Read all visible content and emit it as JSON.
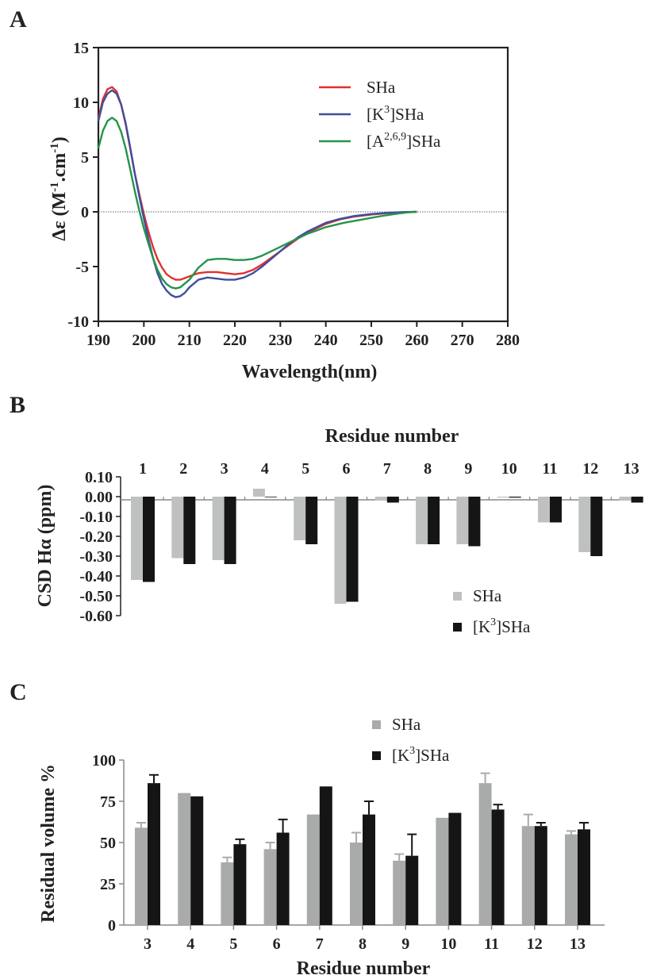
{
  "chart_data": [
    {
      "panel_label": "A",
      "type": "line",
      "xlabel": "Wavelength(nm)",
      "ylabel": "Δε (M-1.cm-1)",
      "xlim": [
        190,
        280
      ],
      "ylim": [
        -10,
        15
      ],
      "xticks": [
        190,
        200,
        210,
        220,
        230,
        240,
        250,
        260,
        270,
        280
      ],
      "yticks": [
        -10,
        -5,
        0,
        5,
        10,
        15
      ],
      "zero_line": true,
      "legend_position": "top-right",
      "series": [
        {
          "name": "SHa",
          "color": "#e0312f",
          "x": [
            190,
            191,
            192,
            193,
            194,
            195,
            196,
            197,
            198,
            199,
            200,
            201,
            202,
            203,
            204,
            205,
            206,
            207,
            208,
            210,
            212,
            214,
            216,
            218,
            220,
            222,
            224,
            226,
            228,
            230,
            232,
            234,
            236,
            238,
            240,
            243,
            246,
            250,
            254,
            257,
            260
          ],
          "y": [
            8.5,
            10.3,
            11.2,
            11.4,
            11.0,
            9.8,
            8.0,
            5.8,
            3.5,
            1.6,
            -0.2,
            -1.8,
            -3.2,
            -4.3,
            -5.1,
            -5.7,
            -6.0,
            -6.2,
            -6.2,
            -5.9,
            -5.6,
            -5.5,
            -5.5,
            -5.6,
            -5.7,
            -5.6,
            -5.3,
            -4.8,
            -4.2,
            -3.6,
            -3.0,
            -2.4,
            -1.9,
            -1.5,
            -1.1,
            -0.7,
            -0.45,
            -0.25,
            -0.1,
            -0.03,
            0
          ]
        },
        {
          "name": "[K3]SHa",
          "color": "#3f4e9e",
          "x": [
            190,
            191,
            192,
            193,
            194,
            195,
            196,
            197,
            198,
            199,
            200,
            201,
            202,
            203,
            204,
            205,
            206,
            207,
            208,
            209,
            210,
            212,
            214,
            216,
            218,
            220,
            222,
            224,
            226,
            228,
            230,
            232,
            234,
            236,
            238,
            240,
            243,
            246,
            250,
            254,
            257,
            260
          ],
          "y": [
            8.3,
            10.0,
            10.8,
            11.1,
            10.8,
            9.8,
            8.1,
            5.9,
            3.5,
            1.4,
            -0.6,
            -2.5,
            -4.2,
            -5.6,
            -6.6,
            -7.2,
            -7.6,
            -7.8,
            -7.7,
            -7.4,
            -6.9,
            -6.2,
            -6.0,
            -6.1,
            -6.2,
            -6.2,
            -6.0,
            -5.6,
            -5.0,
            -4.3,
            -3.6,
            -2.9,
            -2.3,
            -1.8,
            -1.4,
            -1.0,
            -0.65,
            -0.4,
            -0.2,
            -0.08,
            -0.02,
            0
          ]
        },
        {
          "name": "[A2,6,9]SHa",
          "color": "#25934a",
          "x": [
            190,
            191,
            192,
            193,
            194,
            195,
            196,
            197,
            198,
            199,
            200,
            201,
            202,
            203,
            204,
            205,
            206,
            207,
            208,
            210,
            212,
            214,
            216,
            218,
            220,
            222,
            224,
            226,
            228,
            230,
            232,
            234,
            236,
            238,
            240,
            244,
            248,
            252,
            256,
            258,
            260
          ],
          "y": [
            5.8,
            7.4,
            8.3,
            8.6,
            8.3,
            7.3,
            5.8,
            3.9,
            1.9,
            0.1,
            -1.5,
            -2.9,
            -4.2,
            -5.3,
            -6.1,
            -6.6,
            -6.9,
            -7.0,
            -6.9,
            -6.2,
            -5.1,
            -4.4,
            -4.3,
            -4.3,
            -4.4,
            -4.4,
            -4.3,
            -4.0,
            -3.6,
            -3.2,
            -2.8,
            -2.4,
            -2.0,
            -1.7,
            -1.4,
            -1.0,
            -0.7,
            -0.4,
            -0.15,
            -0.05,
            0
          ]
        }
      ]
    },
    {
      "panel_label": "B",
      "type": "bar",
      "title": "Residue number",
      "ylabel": "CSD Hα (ppm)",
      "ylim": [
        -0.6,
        0.1
      ],
      "yticks": [
        "0.10",
        "0.00",
        "-0.10",
        "-0.20",
        "-0.30",
        "-0.40",
        "-0.50",
        "-0.60"
      ],
      "categories": [
        "1",
        "2",
        "3",
        "4",
        "5",
        "6",
        "7",
        "8",
        "9",
        "10",
        "11",
        "12",
        "13"
      ],
      "legend_position": "lower-right",
      "series": [
        {
          "name": "SHa",
          "color": "#bfc1c1",
          "values": [
            -0.42,
            -0.31,
            -0.32,
            0.04,
            -0.22,
            -0.54,
            -0.02,
            -0.24,
            -0.24,
            -0.005,
            -0.13,
            -0.28,
            -0.02
          ]
        },
        {
          "name": "[K3]SHa",
          "color": "#151515",
          "values": [
            -0.43,
            -0.34,
            -0.34,
            0.0,
            -0.24,
            -0.53,
            -0.03,
            -0.24,
            -0.25,
            -0.005,
            -0.13,
            -0.3,
            -0.03
          ]
        }
      ]
    },
    {
      "panel_label": "C",
      "type": "bar",
      "xlabel": "Residue number",
      "ylabel": "Residual volume %",
      "ylim": [
        0,
        100
      ],
      "yticks": [
        "0",
        "25",
        "50",
        "75",
        "100"
      ],
      "categories": [
        "3",
        "4",
        "5",
        "6",
        "7",
        "8",
        "9",
        "10",
        "11",
        "12",
        "13"
      ],
      "legend_position": "top-center",
      "series": [
        {
          "name": "SHa",
          "color": "#a9abab",
          "values": [
            59,
            80,
            38,
            46,
            67,
            50,
            39,
            65,
            86,
            60,
            55
          ],
          "errors": [
            3,
            0,
            3,
            4,
            0,
            6,
            4,
            0,
            6,
            7,
            2
          ]
        },
        {
          "name": "[K3]SHa",
          "color": "#151515",
          "values": [
            86,
            78,
            49,
            56,
            84,
            67,
            42,
            68,
            70,
            60,
            58
          ],
          "errors": [
            5,
            0,
            3,
            8,
            0,
            8,
            13,
            0,
            3,
            2,
            4
          ]
        }
      ]
    }
  ]
}
